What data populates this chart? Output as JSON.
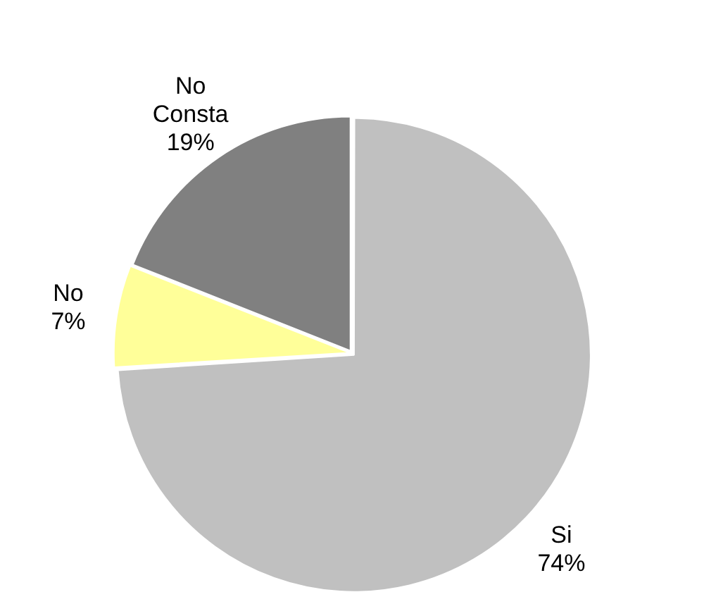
{
  "chart_data": {
    "type": "pie",
    "categories": [
      "Si",
      "No",
      "No Consta"
    ],
    "values": [
      74,
      7,
      19
    ],
    "colors": [
      "#c0c0c0",
      "#ffff99",
      "#808080"
    ],
    "value_labels": [
      "74%",
      "7%",
      "19%"
    ],
    "legend": false
  }
}
